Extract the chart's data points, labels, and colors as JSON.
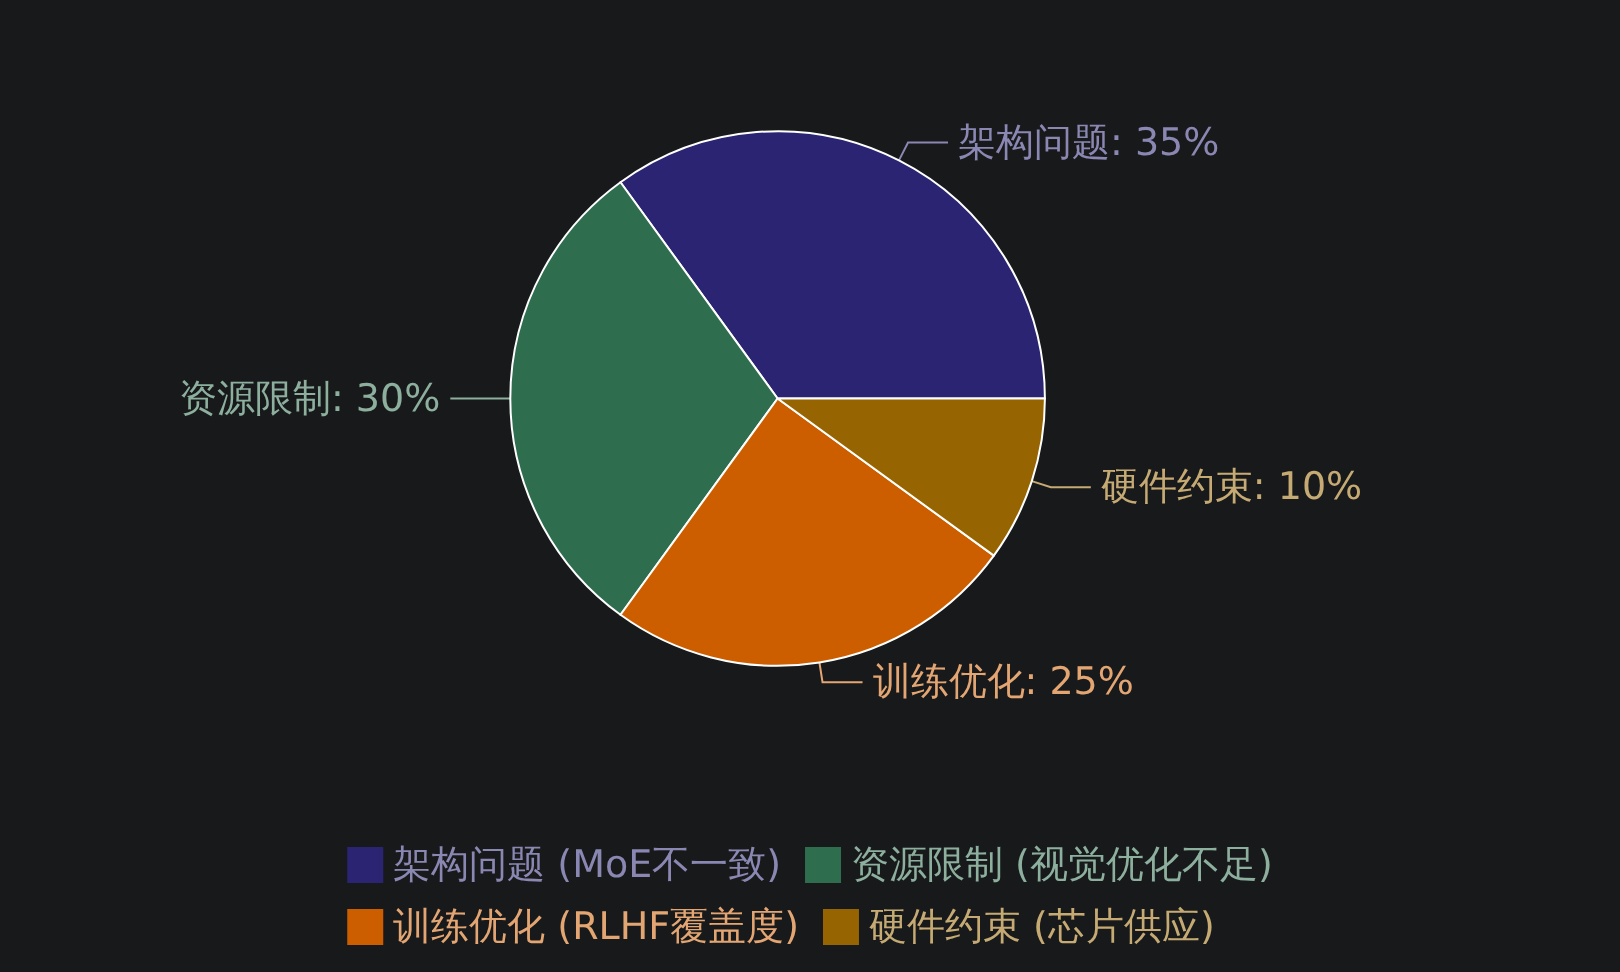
{
  "chart_data": {
    "type": "pie",
    "categories": [
      "架构问题 (MoE不一致)",
      "资源限制 (视觉优化不足)",
      "训练优化 (RLHF覆盖度)",
      "硬件约束 (芯片供应)"
    ],
    "values": [
      35,
      30,
      25,
      10
    ],
    "colors": [
      "#2a2473",
      "#2e6e4f",
      "#cc5e00",
      "#966400"
    ],
    "value_labels": [
      "架构问题: 35%",
      "资源限制: 30%",
      "训练优化: 25%",
      "硬件约束: 10%"
    ],
    "legend": "bottom"
  }
}
